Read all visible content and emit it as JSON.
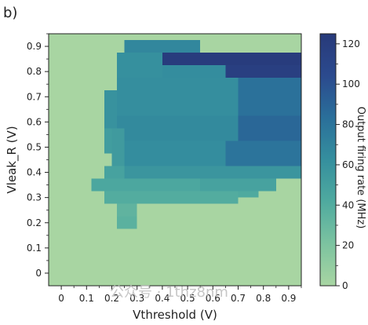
{
  "panel_label": "b)",
  "watermark": "公众号 · 1thz8nm",
  "chart_data": {
    "type": "heatmap",
    "xlabel": "Vthreshold (V)",
    "ylabel": "Vleak_R (V)",
    "colorbar_label": "Output firing rate (MHz)",
    "xlim": [
      -0.05,
      0.95
    ],
    "ylim": [
      -0.05,
      0.95
    ],
    "x_ticks": [
      0,
      0.1,
      0.2,
      0.3,
      0.4,
      0.5,
      0.6,
      0.7,
      0.8,
      0.9
    ],
    "x_tick_labels": [
      "0",
      "0.1",
      "0.2",
      "0.3",
      "0.4",
      "0.5",
      "0.6",
      "0.7",
      "0.8",
      "0.9"
    ],
    "y_ticks": [
      0,
      0.1,
      0.2,
      0.3,
      0.4,
      0.5,
      0.6,
      0.7,
      0.8,
      0.9
    ],
    "y_tick_labels": [
      "0",
      "0.1",
      "0.2",
      "0.3",
      "0.4",
      "0.5",
      "0.6",
      "0.7",
      "0.8",
      "0.9"
    ],
    "colorbar_range": [
      0,
      125
    ],
    "colorbar_ticks": [
      0,
      20,
      40,
      60,
      80,
      100,
      120
    ],
    "colorbar_tick_labels": [
      "0",
      "20",
      "40",
      "60",
      "80",
      "100",
      "120"
    ],
    "colormap": [
      "#a8d5a2",
      "#7cc3a0",
      "#4faa9f",
      "#358f9e",
      "#2a6f9a",
      "#2b4a8e",
      "#283a7a"
    ],
    "background_value": 0,
    "cells": [
      {
        "x": [
          0.25,
          0.55
        ],
        "y": [
          0.875,
          0.925
        ],
        "value": 68
      },
      {
        "x": [
          0.4,
          0.95
        ],
        "y": [
          0.825,
          0.875
        ],
        "value": 122
      },
      {
        "x": [
          0.65,
          0.95
        ],
        "y": [
          0.775,
          0.825
        ],
        "value": 118
      },
      {
        "x": [
          0.22,
          0.4
        ],
        "y": [
          0.775,
          0.875
        ],
        "value": 62
      },
      {
        "x": [
          0.4,
          0.65
        ],
        "y": [
          0.775,
          0.825
        ],
        "value": 64
      },
      {
        "x": [
          0.22,
          0.7
        ],
        "y": [
          0.625,
          0.775
        ],
        "value": 63
      },
      {
        "x": [
          0.7,
          0.95
        ],
        "y": [
          0.625,
          0.775
        ],
        "value": 82
      },
      {
        "x": [
          0.17,
          0.22
        ],
        "y": [
          0.575,
          0.725
        ],
        "value": 60
      },
      {
        "x": [
          0.22,
          0.7
        ],
        "y": [
          0.525,
          0.625
        ],
        "value": 66
      },
      {
        "x": [
          0.7,
          0.95
        ],
        "y": [
          0.525,
          0.625
        ],
        "value": 88
      },
      {
        "x": [
          0.17,
          0.2
        ],
        "y": [
          0.475,
          0.575
        ],
        "value": 52
      },
      {
        "x": [
          0.2,
          0.25
        ],
        "y": [
          0.425,
          0.575
        ],
        "value": 54
      },
      {
        "x": [
          0.25,
          0.65
        ],
        "y": [
          0.425,
          0.525
        ],
        "value": 64
      },
      {
        "x": [
          0.65,
          0.95
        ],
        "y": [
          0.425,
          0.525
        ],
        "value": 80
      },
      {
        "x": [
          0.17,
          0.25
        ],
        "y": [
          0.375,
          0.425
        ],
        "value": 48
      },
      {
        "x": [
          0.25,
          0.95
        ],
        "y": [
          0.375,
          0.425
        ],
        "value": 58
      },
      {
        "x": [
          0.12,
          0.55
        ],
        "y": [
          0.325,
          0.375
        ],
        "value": 44
      },
      {
        "x": [
          0.55,
          0.85
        ],
        "y": [
          0.325,
          0.375
        ],
        "value": 48
      },
      {
        "x": [
          0.17,
          0.7
        ],
        "y": [
          0.275,
          0.325
        ],
        "value": 40
      },
      {
        "x": [
          0.7,
          0.78
        ],
        "y": [
          0.3,
          0.325
        ],
        "value": 42
      },
      {
        "x": [
          0.22,
          0.3
        ],
        "y": [
          0.225,
          0.275
        ],
        "value": 34
      },
      {
        "x": [
          0.22,
          0.3
        ],
        "y": [
          0.175,
          0.225
        ],
        "value": 36
      }
    ]
  }
}
